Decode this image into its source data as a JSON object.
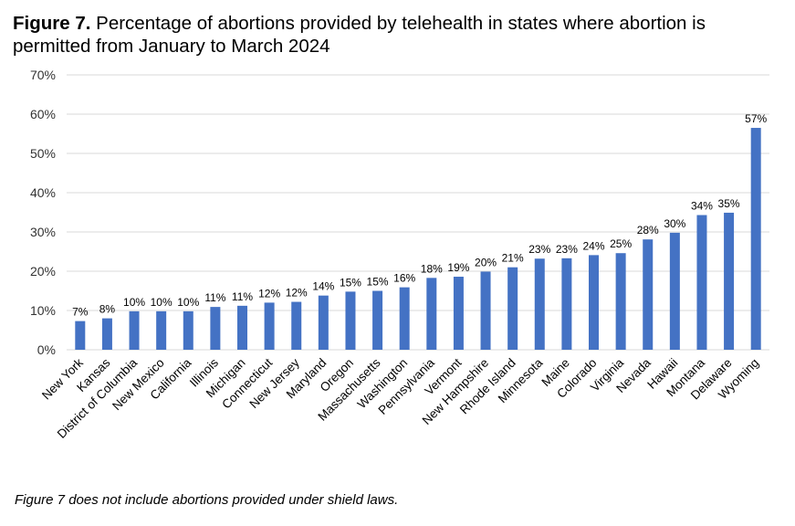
{
  "figure": {
    "label": "Figure 7.",
    "title": "Percentage of abortions provided by telehealth in states where abortion is permitted from January to March 2024",
    "note": "Figure 7 does not include abortions provided under shield laws."
  },
  "colors": {
    "bar": "#4472C4",
    "grid": "#D9D9D9",
    "axis": "#D9D9D9",
    "text": "#000000"
  },
  "chart_data": {
    "type": "bar",
    "title": "Percentage of abortions provided by telehealth in states where abortion is permitted from January to March 2024",
    "xlabel": "",
    "ylabel": "",
    "ylim": [
      0,
      70
    ],
    "yticks": [
      0,
      10,
      20,
      30,
      40,
      50,
      60,
      70
    ],
    "ytick_labels": [
      "0%",
      "10%",
      "20%",
      "30%",
      "40%",
      "50%",
      "60%",
      "70%"
    ],
    "grid": true,
    "legend": "none",
    "categories": [
      "New York",
      "Kansas",
      "District of Columbia",
      "New Mexico",
      "California",
      "Illinois",
      "Michigan",
      "Connecticut",
      "New Jersey",
      "Maryland",
      "Oregon",
      "Massachusetts",
      "Washington",
      "Pennsylvania",
      "Vermont",
      "New Hampshire",
      "Rhode Island",
      "Minnesota",
      "Maine",
      "Colorado",
      "Virginia",
      "Nevada",
      "Hawaii",
      "Montana",
      "Delaware",
      "Wyoming"
    ],
    "values": [
      7.3,
      8.0,
      9.8,
      9.8,
      9.8,
      10.9,
      11.2,
      12.0,
      12.2,
      13.8,
      14.8,
      15.0,
      15.9,
      18.3,
      18.6,
      19.9,
      21.0,
      23.2,
      23.3,
      24.1,
      24.6,
      28.1,
      29.8,
      34.3,
      34.9,
      56.5
    ],
    "data_labels": [
      "7%",
      "8%",
      "10%",
      "10%",
      "10%",
      "11%",
      "11%",
      "12%",
      "12%",
      "14%",
      "15%",
      "15%",
      "16%",
      "18%",
      "19%",
      "20%",
      "21%",
      "23%",
      "23%",
      "24%",
      "25%",
      "28%",
      "30%",
      "34%",
      "35%",
      "57%"
    ]
  }
}
